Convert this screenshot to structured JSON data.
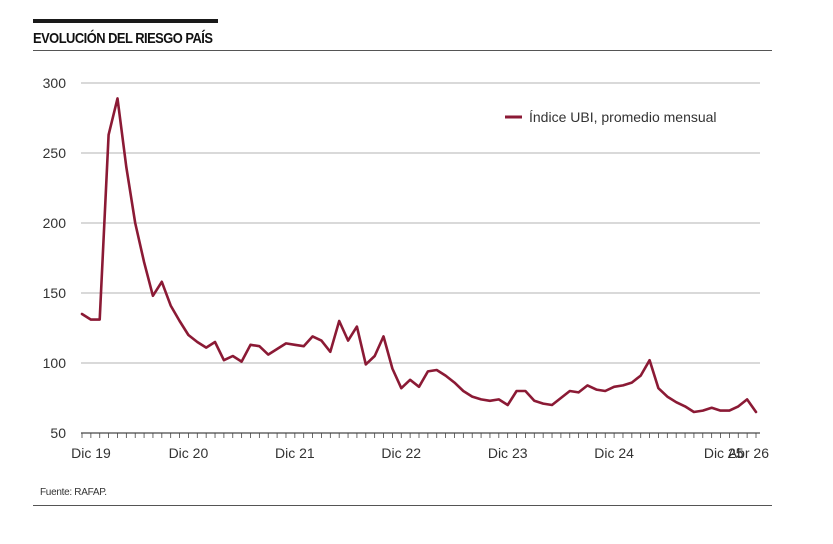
{
  "header": {
    "title": "EVOLUCIÓN DEL RIESGO PAÍS"
  },
  "footer": {
    "source": "Fuente: RAFAP."
  },
  "colors": {
    "series": "#8b1a35",
    "grid": "#9a9a9a",
    "rules": "#1a1a1a"
  },
  "chart_data": {
    "type": "line",
    "title": "",
    "xlabel": "",
    "ylabel": "",
    "ylim": [
      50,
      300
    ],
    "yticks": [
      50,
      100,
      150,
      200,
      250,
      300
    ],
    "grid": true,
    "legend": "top-right",
    "x_tick_labels": [
      {
        "label": "Dic 19",
        "date": "2019-12"
      },
      {
        "label": "Dic 20",
        "date": "2020-12"
      },
      {
        "label": "Dic 21",
        "date": "2021-12"
      },
      {
        "label": "Dic 22",
        "date": "2022-12"
      },
      {
        "label": "Dic 23",
        "date": "2023-12"
      },
      {
        "label": "Dic 24",
        "date": "2024-12"
      },
      {
        "label": "Dic 25",
        "date": "2025-12"
      },
      {
        "label": "Abr 26",
        "date": "2026-04"
      }
    ],
    "x": [
      "2019-12",
      "2020-01",
      "2020-02",
      "2020-03",
      "2020-04",
      "2020-05",
      "2020-06",
      "2020-07",
      "2020-08",
      "2020-09",
      "2020-10",
      "2020-11",
      "2020-12",
      "2021-01",
      "2021-02",
      "2021-03",
      "2021-04",
      "2021-05",
      "2021-06",
      "2021-07",
      "2021-08",
      "2021-09",
      "2021-10",
      "2021-11",
      "2021-12",
      "2022-01",
      "2022-02",
      "2022-03",
      "2022-04",
      "2022-05",
      "2022-06",
      "2022-07",
      "2022-08",
      "2022-09",
      "2022-10",
      "2022-11",
      "2022-12",
      "2023-01",
      "2023-02",
      "2023-03",
      "2023-04",
      "2023-05",
      "2023-06",
      "2023-07",
      "2023-08",
      "2023-09",
      "2023-10",
      "2023-11",
      "2023-12",
      "2024-01",
      "2024-02",
      "2024-03",
      "2024-04",
      "2024-05",
      "2024-06",
      "2024-07",
      "2024-08",
      "2024-09",
      "2024-10",
      "2024-11",
      "2024-12",
      "2025-01",
      "2025-02",
      "2025-03",
      "2025-04",
      "2025-05",
      "2025-06",
      "2025-07",
      "2025-08",
      "2025-09",
      "2025-10",
      "2025-11",
      "2025-12",
      "2026-01",
      "2026-02",
      "2026-03",
      "2026-04"
    ],
    "series": [
      {
        "name": "Índice UBI, promedio mensual",
        "values": [
          135,
          131,
          131,
          263,
          289,
          240,
          200,
          172,
          148,
          158,
          141,
          130,
          120,
          115,
          111,
          115,
          102,
          105,
          101,
          113,
          112,
          106,
          110,
          114,
          113,
          112,
          119,
          116,
          108,
          130,
          116,
          126,
          99,
          105,
          119,
          96,
          82,
          88,
          83,
          94,
          95,
          91,
          86,
          80,
          76,
          74,
          73,
          74,
          70,
          80,
          80,
          73,
          71,
          70,
          75,
          80,
          79,
          84,
          81,
          80,
          83,
          84,
          86,
          91,
          102,
          82,
          76,
          72,
          69,
          65,
          66,
          68,
          66,
          66,
          69,
          74,
          65
        ]
      }
    ]
  }
}
